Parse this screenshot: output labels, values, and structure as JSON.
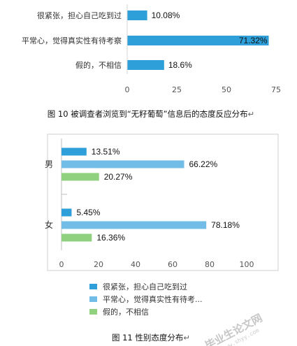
{
  "chart_data": [
    {
      "type": "bar",
      "orientation": "horizontal",
      "categories": [
        "很紧张，担心自己吃到过",
        "平常心，觉得真实性有待考察",
        "假的，不相信"
      ],
      "values": [
        10.08,
        71.32,
        18.6
      ],
      "value_labels": [
        "10.08%",
        "71.32%",
        "18.6%"
      ],
      "xlim": [
        0,
        75
      ],
      "xticks": [
        "0",
        "25",
        "50",
        "75"
      ],
      "color": "#2e9fd8",
      "grid": false
    },
    {
      "type": "bar",
      "orientation": "horizontal",
      "categories": [
        "男",
        "女"
      ],
      "series": [
        {
          "name": "很紧张，担心自己吃到过",
          "values": [
            13.51,
            5.45
          ],
          "labels": [
            "13.51%",
            "5.45%"
          ],
          "color": "#2e9fd8"
        },
        {
          "name": "平常心，觉得真实性有待考...",
          "values": [
            66.22,
            78.18
          ],
          "labels": [
            "66.22%",
            "78.18%"
          ],
          "color": "#71bde8"
        },
        {
          "name": "假的，不相信",
          "values": [
            20.27,
            16.36
          ],
          "labels": [
            "20.27%",
            "16.36%"
          ],
          "color": "#8fd17f"
        }
      ],
      "xlim": [
        0,
        100
      ],
      "xticks": [
        "0",
        "20",
        "40",
        "60",
        "80",
        "100"
      ],
      "legend": "bottom",
      "grid": false
    }
  ],
  "captions": {
    "fig10": "图 10  被调查者浏览到“无籽葡萄”信息后的态度反应分布",
    "fig11": "图 11  性别态度分布",
    "return_mark": "↵"
  },
  "watermark": {
    "text": "毕业生论文网",
    "url": "www.shyy.com"
  }
}
